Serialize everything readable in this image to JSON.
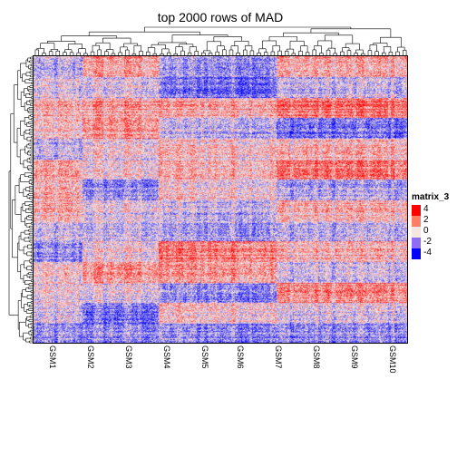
{
  "title": "top 2000 rows of MAD",
  "colors": {
    "high": "#ff0000",
    "mid": "#f5e6e0",
    "low": "#0000ff"
  },
  "chart_data": {
    "type": "heatmap",
    "title": "top 2000 rows of MAD",
    "xlabel": "",
    "ylabel": "",
    "n_rows": 2000,
    "n_columns": 108,
    "row_dendrogram": true,
    "column_dendrogram": true,
    "color_range": [
      -4,
      4
    ],
    "legend": {
      "title": "matrix_3",
      "placement": "right",
      "breaks": [
        {
          "label": "4",
          "value": 4,
          "color": "#ff0000"
        },
        {
          "label": "2",
          "value": 2,
          "color": "#ff7f66"
        },
        {
          "label": "0",
          "value": 0,
          "color": "#f5e6e0"
        },
        {
          "label": "-2",
          "value": -2,
          "color": "#8f6cf5"
        },
        {
          "label": "-4",
          "value": -4,
          "color": "#0000ff"
        }
      ]
    },
    "column_labels": [
      "GSM1",
      "GSM2",
      "GSM3",
      "GSM4",
      "GSM5",
      "GSM6",
      "GSM7",
      "GSM8",
      "GSM9",
      "GSM10"
    ]
  }
}
